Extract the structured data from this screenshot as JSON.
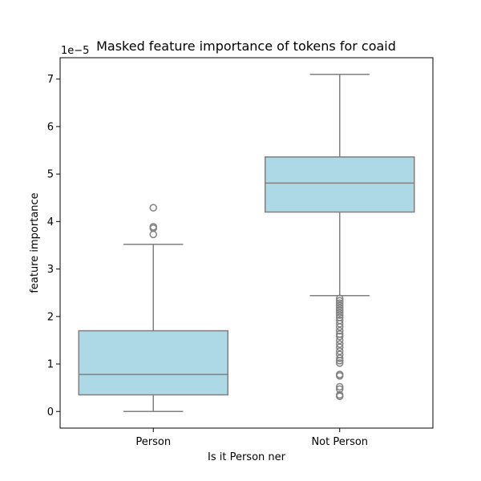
{
  "chart_data": {
    "type": "box",
    "title": "Masked feature importance of tokens for coaid",
    "xlabel": "Is it Person ner",
    "ylabel": "feature importance",
    "y_offset_label": "1e−5",
    "y_scale_note": "values in units of 1e-5",
    "ylim": [
      -0.35,
      7.45
    ],
    "yticks": [
      0,
      1,
      2,
      3,
      4,
      5,
      6,
      7
    ],
    "categories": [
      "Person",
      "Not Person"
    ],
    "grid": false,
    "box_color": "#add8e6",
    "line_color": "#808080",
    "boxes": [
      {
        "category": "Person",
        "whisker_low": 0.0,
        "q1": 0.35,
        "median": 0.78,
        "q3": 1.7,
        "whisker_high": 3.52,
        "outliers": [
          3.73,
          3.86,
          3.89,
          4.29
        ]
      },
      {
        "category": "Not Person",
        "whisker_low": 2.44,
        "q1": 4.2,
        "median": 4.81,
        "q3": 5.36,
        "whisker_high": 7.1,
        "outliers": [
          0.32,
          0.35,
          0.47,
          0.52,
          0.75,
          0.78,
          1.02,
          1.07,
          1.12,
          1.2,
          1.27,
          1.35,
          1.42,
          1.5,
          1.58,
          1.63,
          1.7,
          1.78,
          1.85,
          1.92,
          1.98,
          2.03,
          2.08,
          2.13,
          2.18,
          2.23,
          2.28,
          2.33,
          2.38
        ]
      }
    ]
  }
}
